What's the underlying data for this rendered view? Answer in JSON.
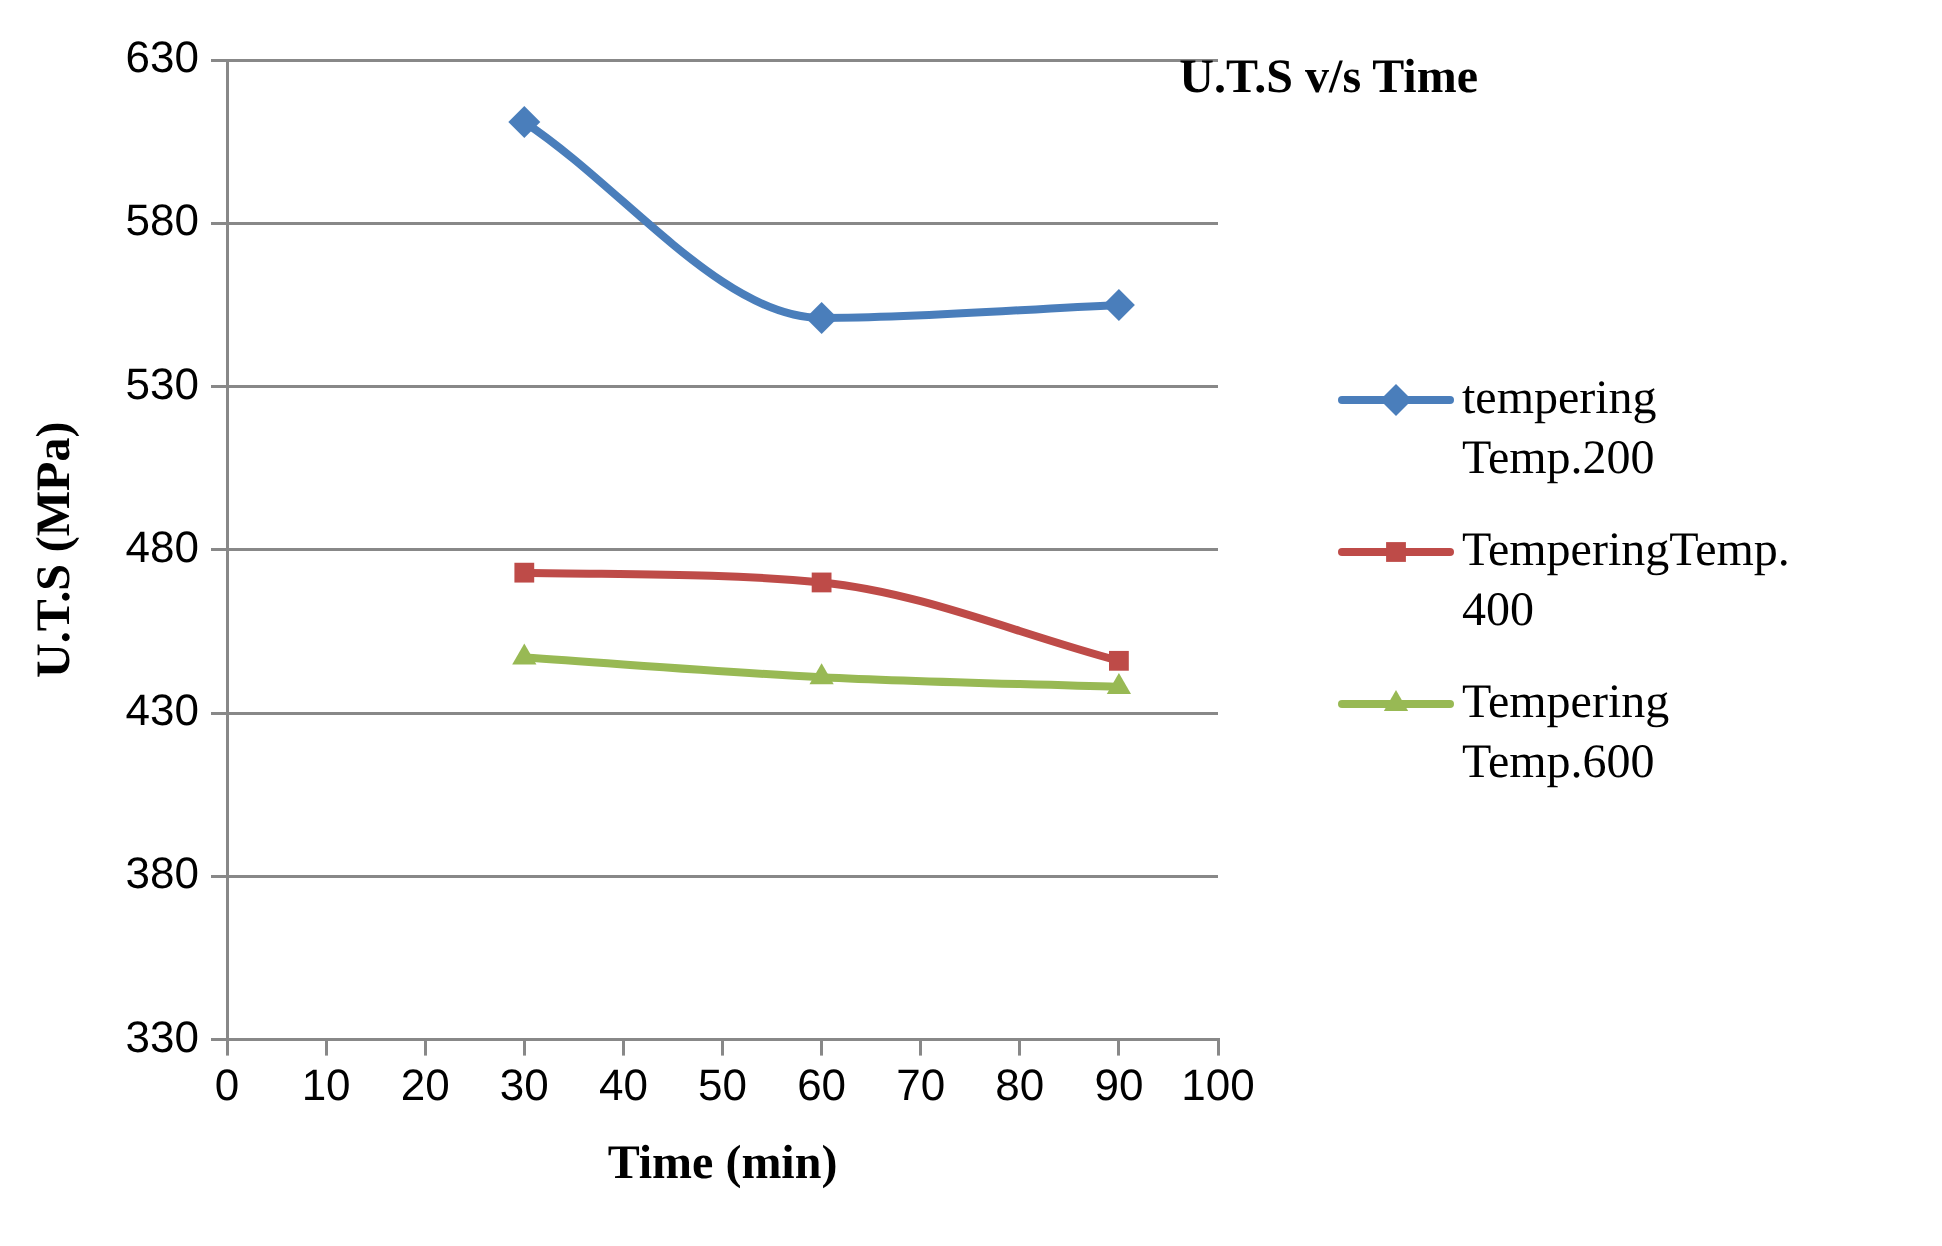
{
  "chart_data": {
    "type": "line",
    "title": "U.T.S v/s Time",
    "xlabel": "Time (min)",
    "ylabel": "U.T.S (MPa)",
    "x": [
      30,
      60,
      90
    ],
    "series": [
      {
        "name": "tempering Temp.200",
        "color": "#4a7ebb",
        "values": [
          611,
          551,
          555
        ],
        "marker": "diamond"
      },
      {
        "name": "TemperingTemp.400",
        "color": "#be4b48",
        "values": [
          473,
          470,
          446
        ],
        "marker": "square"
      },
      {
        "name": "Tempering Temp.600",
        "color": "#98b954",
        "values": [
          447,
          441,
          438
        ],
        "marker": "triangle"
      }
    ],
    "xlim": [
      0,
      100
    ],
    "xticks": [
      0,
      10,
      20,
      30,
      40,
      50,
      60,
      70,
      80,
      90,
      100
    ],
    "ylim": [
      330,
      630
    ],
    "yticks": [
      330,
      380,
      430,
      480,
      530,
      580,
      630
    ],
    "grid": "y",
    "legend": "right"
  }
}
